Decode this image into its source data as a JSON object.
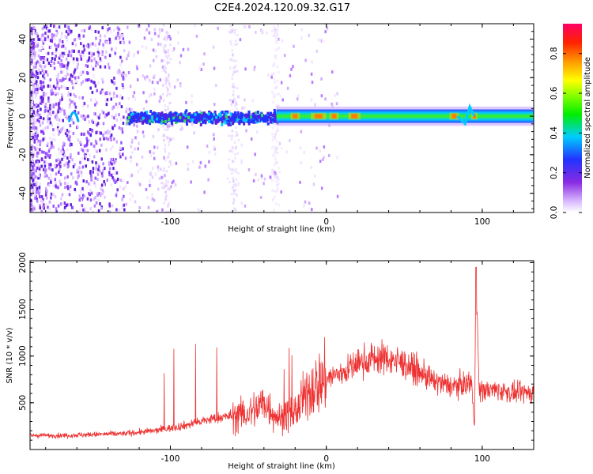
{
  "title": "C2E4.2024.120.09.32.G17",
  "colors": {
    "snr_line": "#ee3030",
    "axes": "#000000"
  },
  "chart_data": [
    {
      "type": "heatmap",
      "xlabel": "Height of straight line (km)",
      "ylabel": "Frequency (Hz)",
      "xlim": [
        -190,
        133
      ],
      "ylim": [
        -50,
        48
      ],
      "xticks": [
        -100,
        0,
        100
      ],
      "xtick_labels": [
        "-100",
        "0",
        "100"
      ],
      "yticks": [
        -40,
        -20,
        0,
        20,
        40
      ],
      "ytick_labels": [
        "-40",
        "-20",
        "0",
        "20",
        "40"
      ],
      "colorbar": {
        "label": "Normalized spectral amplitude",
        "range": [
          0,
          0.95
        ],
        "ticks": [
          0.0,
          0.2,
          0.4,
          0.6,
          0.8
        ],
        "tick_labels": [
          "0.0",
          "0.2",
          "0.4",
          "0.6",
          "0.8"
        ],
        "colormap": "rainbow (white → violet → blue → cyan → green → yellow → orange → red → magenta)"
      },
      "band": {
        "center_hz": 0,
        "from_km": -130,
        "to_km": 133
      },
      "features": [
        {
          "x_km": -162,
          "y_hz": 0,
          "description": "blue arc through zero"
        },
        {
          "x_km": 90,
          "y_hz": 0,
          "description": "wiggle in signal band"
        }
      ]
    },
    {
      "type": "line",
      "xlabel": "Height of straight line (km)",
      "ylabel": "SNR (10 * v/v)",
      "xlim": [
        -190,
        133
      ],
      "ylim": [
        0,
        2020
      ],
      "xticks": [
        -100,
        0,
        100
      ],
      "xtick_labels": [
        "-100",
        "0",
        "100"
      ],
      "yticks": [
        500,
        1000,
        1500,
        2000
      ],
      "ytick_labels": [
        "500",
        "1000",
        "1500",
        "2000"
      ],
      "series": [
        {
          "x": [
            -190,
            -170,
            -150,
            -130,
            -110,
            -90,
            -70,
            -50,
            -40,
            -30,
            -20,
            -10,
            0,
            10,
            20,
            30,
            40,
            50,
            60,
            70,
            80,
            90,
            93,
            95,
            96,
            98,
            110,
            120,
            133
          ],
          "values": [
            150,
            150,
            160,
            170,
            200,
            260,
            340,
            380,
            500,
            330,
            400,
            650,
            760,
            820,
            920,
            980,
            970,
            920,
            820,
            720,
            680,
            700,
            760,
            200,
            1900,
            630,
            640,
            600,
            610
          ]
        }
      ]
    }
  ]
}
